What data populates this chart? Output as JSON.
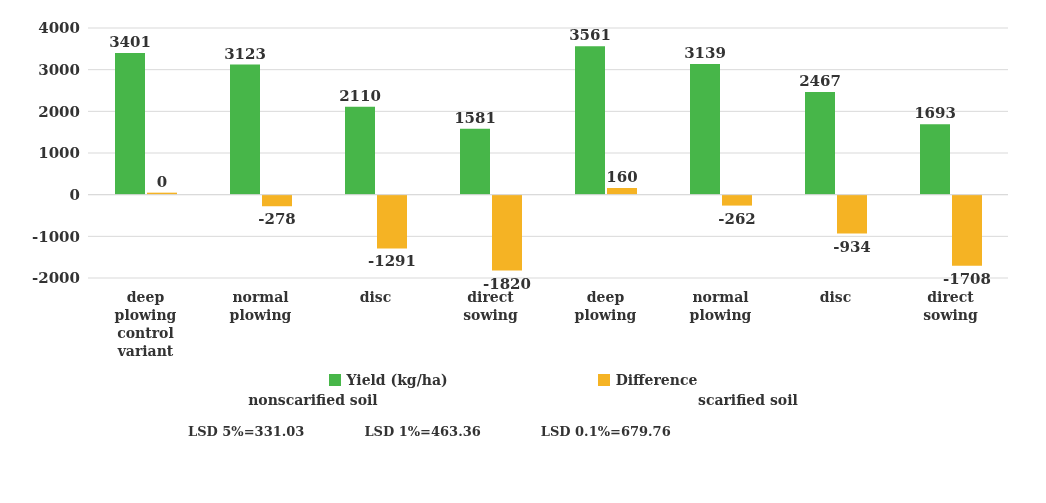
{
  "chart_data": {
    "type": "bar",
    "categories": [
      "deep plowing control variant",
      "normal plowing",
      "disc",
      "direct sowing",
      "deep plowing",
      "normal plowing",
      "disc",
      "direct sowing"
    ],
    "series": [
      {
        "name": "Yield (kg/ha)",
        "color": "#47b649",
        "values": [
          3401,
          3123,
          2110,
          1581,
          3561,
          3139,
          2467,
          1693
        ]
      },
      {
        "name": "Difference",
        "color": "#f5b324",
        "values": [
          0,
          -278,
          -1291,
          -1820,
          160,
          -262,
          -934,
          -1708
        ]
      }
    ],
    "ylim": [
      -2000,
      4000
    ],
    "yticks": [
      -2000,
      -1000,
      0,
      1000,
      2000,
      3000,
      4000
    ],
    "grid": "y",
    "legend": "bottom",
    "data_labels": true,
    "annotations": [
      "nonscarified soil",
      "scarified soil",
      "LSD 5%=331.03",
      "LSD 1%=463.36",
      "LSD 0.1%=679.76"
    ]
  }
}
